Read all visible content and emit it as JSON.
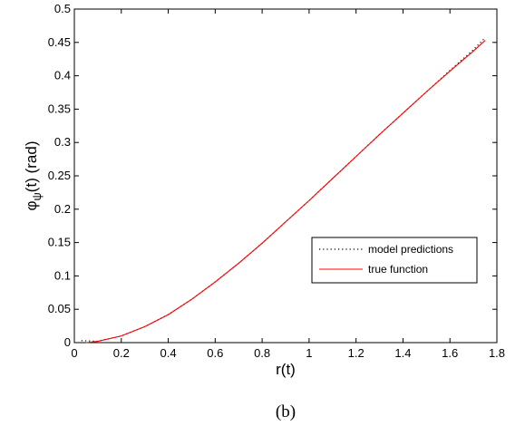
{
  "chart_data": {
    "type": "line",
    "xlabel": "r(t)",
    "ylabel": "(rad)",
    "ylabel_symbol": "φ",
    "ylabel_subscript": "ψ",
    "ylabel_arg": "(t)",
    "caption": "(b)",
    "xlim": [
      0,
      1.8
    ],
    "ylim": [
      0,
      0.5
    ],
    "xticks": [
      0,
      0.2,
      0.4,
      0.6,
      0.8,
      1,
      1.2,
      1.4,
      1.6,
      1.8
    ],
    "yticks": [
      0,
      0.05,
      0.1,
      0.15,
      0.2,
      0.25,
      0.3,
      0.35,
      0.4,
      0.45,
      0.5
    ],
    "grid": false,
    "legend_position": "center-right",
    "series": [
      {
        "name": "model predictions",
        "color": "#000000",
        "style": "dotted",
        "x": [
          0.03,
          0.1,
          0.2,
          0.3,
          0.4,
          0.5,
          0.6,
          0.7,
          0.8,
          0.9,
          1.0,
          1.1,
          1.2,
          1.3,
          1.4,
          1.5,
          1.6,
          1.7,
          1.75
        ],
        "y": [
          0.003,
          0.002,
          0.01,
          0.024,
          0.042,
          0.065,
          0.091,
          0.119,
          0.149,
          0.181,
          0.213,
          0.246,
          0.279,
          0.312,
          0.344,
          0.376,
          0.408,
          0.439,
          0.457
        ]
      },
      {
        "name": "true function",
        "color": "#ff0000",
        "style": "solid",
        "x": [
          0.05,
          0.1,
          0.2,
          0.3,
          0.4,
          0.5,
          0.6,
          0.7,
          0.8,
          0.9,
          1.0,
          1.1,
          1.2,
          1.3,
          1.4,
          1.5,
          1.6,
          1.7,
          1.75
        ],
        "y": [
          0.0,
          0.002,
          0.01,
          0.024,
          0.042,
          0.065,
          0.091,
          0.119,
          0.149,
          0.181,
          0.213,
          0.246,
          0.279,
          0.312,
          0.344,
          0.376,
          0.407,
          0.437,
          0.453
        ]
      }
    ]
  }
}
